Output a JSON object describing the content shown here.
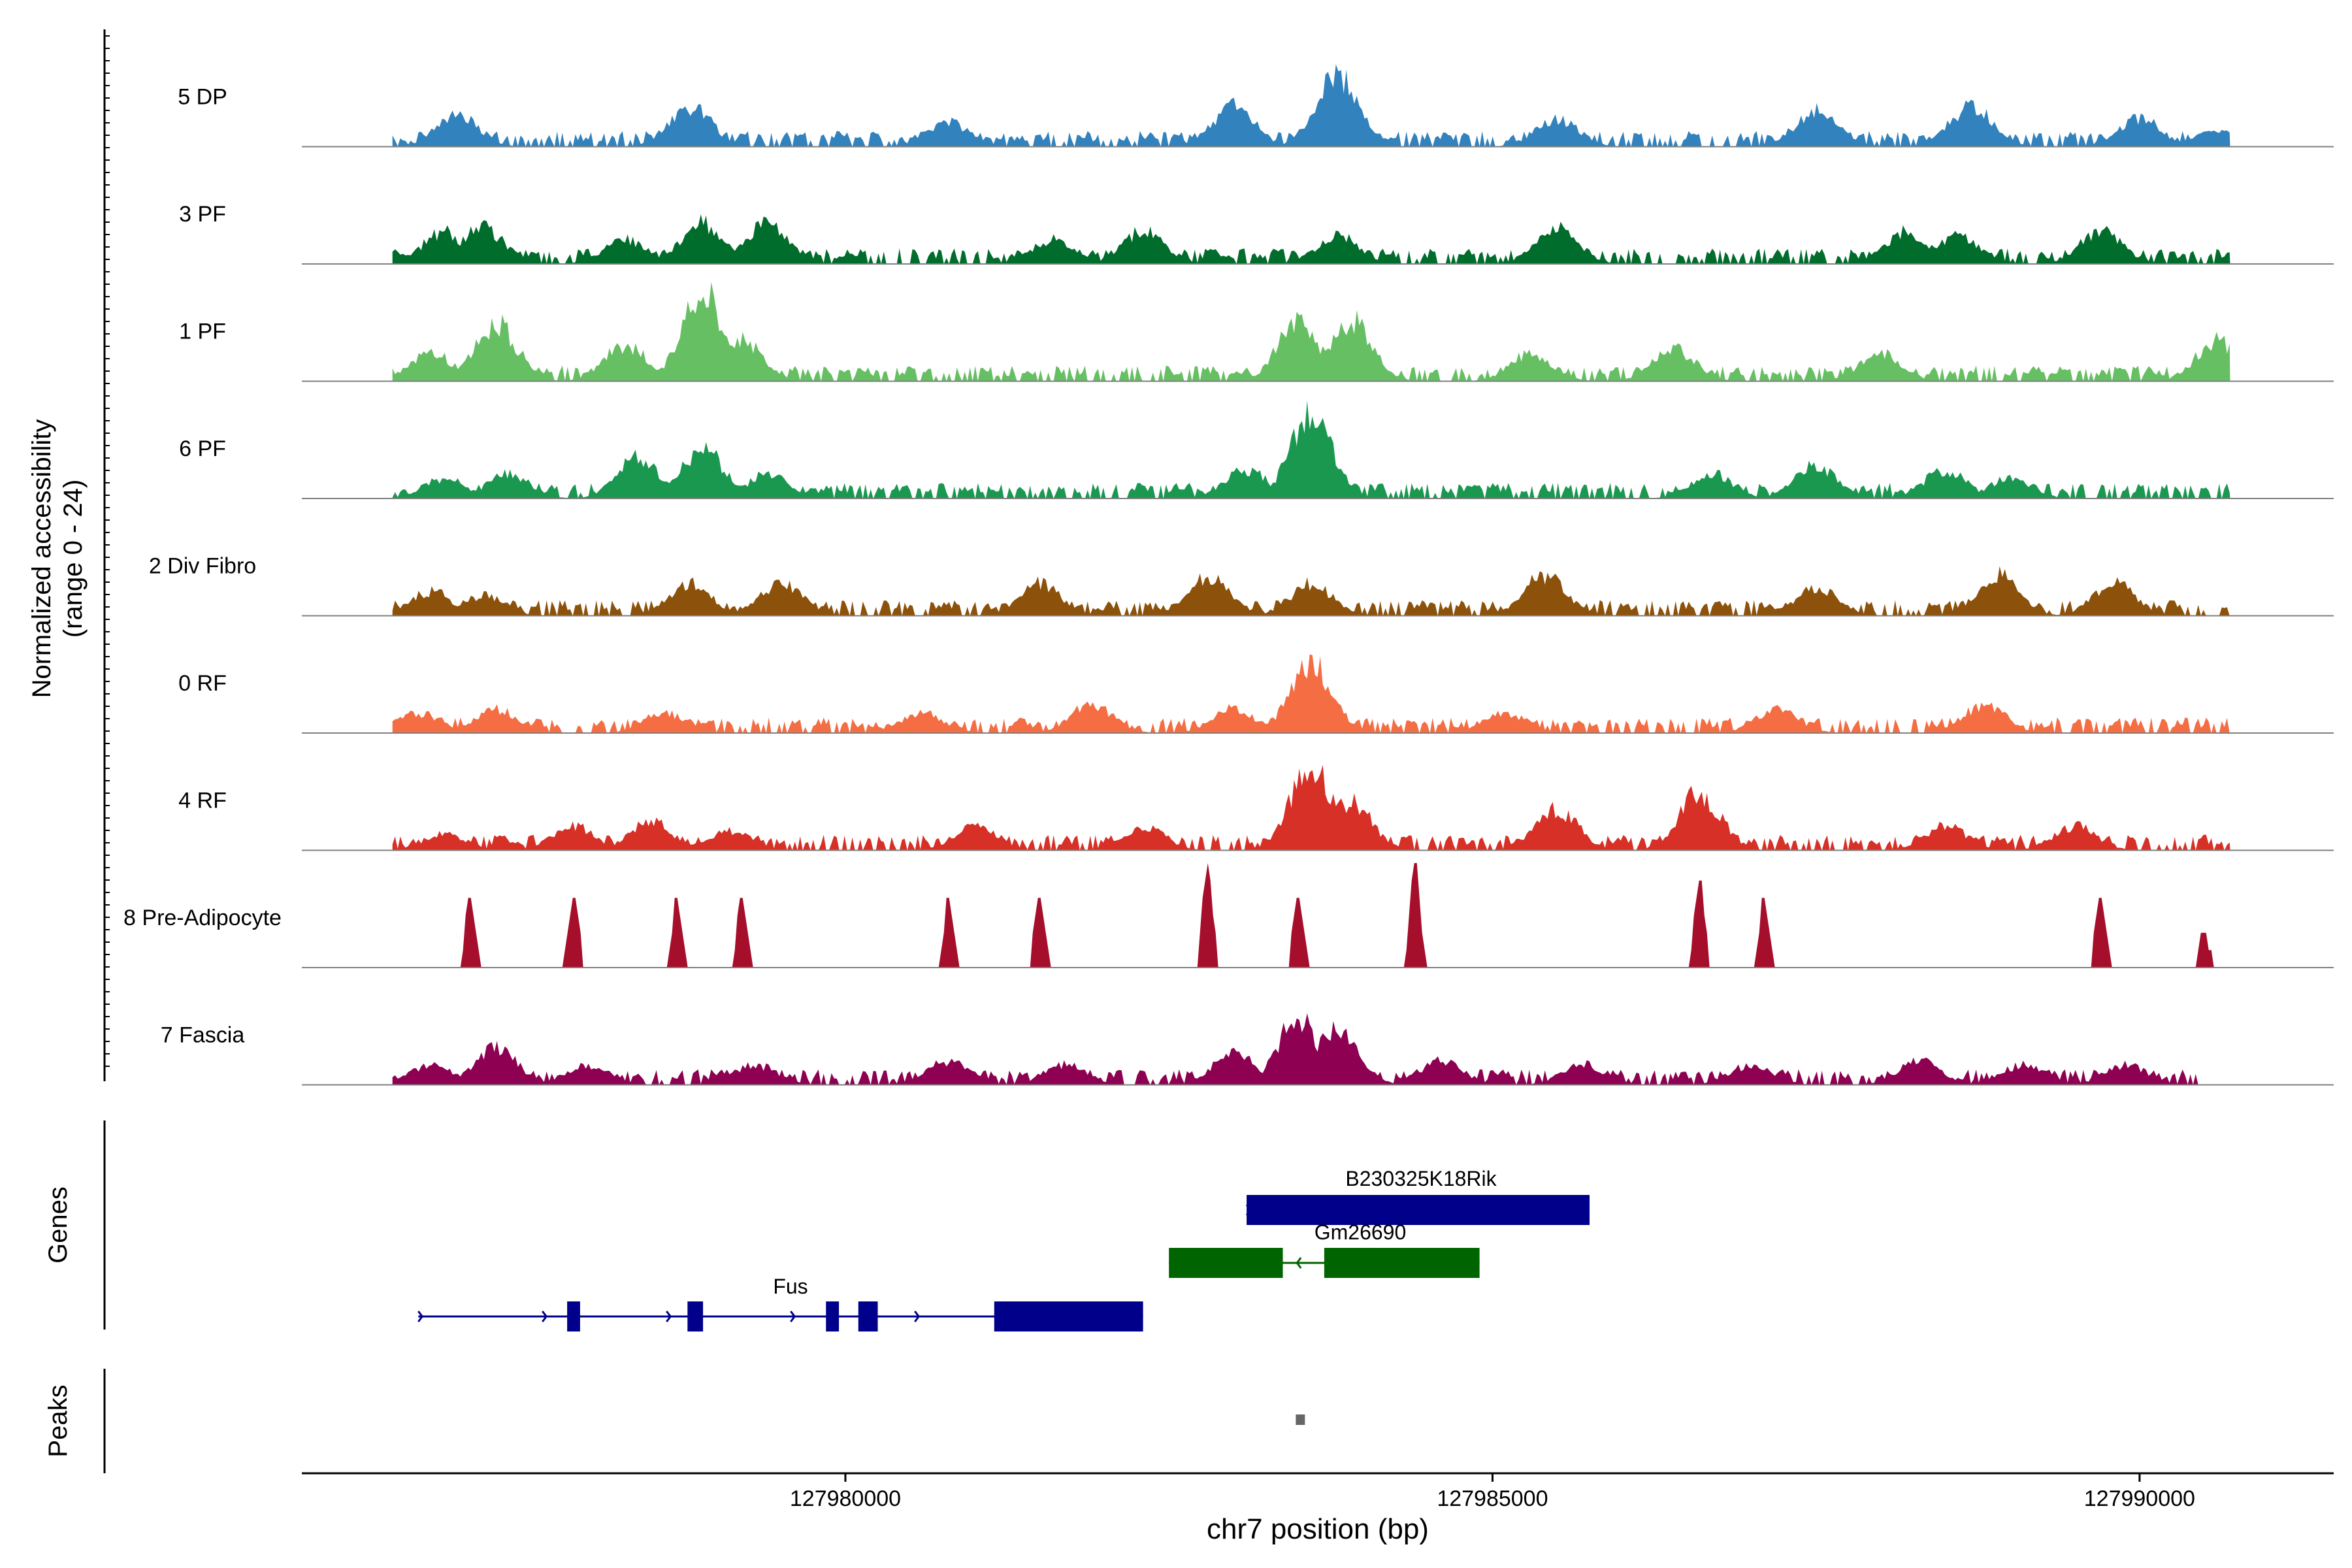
{
  "chart_data": {
    "type": "area",
    "title": "",
    "xlabel": "chr7 position (bp)",
    "ylabel_lines": [
      "Normalized accessibility",
      "(range 0 - 24)"
    ],
    "ylim": [
      0,
      24
    ],
    "xlim": [
      127975800,
      127991500
    ],
    "x_ticks": [
      127980000,
      127985000,
      127990000
    ],
    "x_tick_labels": [
      "127980000",
      "127985000",
      "127990000"
    ],
    "tracks": [
      {
        "name": "5 DP",
        "color": "#3182bd",
        "start": 127976500,
        "end": 127990700,
        "peaks": [
          [
            127977000,
            8
          ],
          [
            127978800,
            10
          ],
          [
            127980800,
            6
          ],
          [
            127983000,
            10
          ],
          [
            127983800,
            18
          ],
          [
            127985500,
            7
          ],
          [
            127987500,
            9
          ],
          [
            127988700,
            10
          ],
          [
            127990000,
            7
          ],
          [
            127990600,
            4
          ]
        ]
      },
      {
        "name": "3 PF",
        "color": "#006d2c",
        "start": 127976500,
        "end": 127990700,
        "peaks": [
          [
            127976900,
            8
          ],
          [
            127977200,
            9
          ],
          [
            127978300,
            6
          ],
          [
            127978900,
            10
          ],
          [
            127979400,
            10
          ],
          [
            127981600,
            6
          ],
          [
            127982300,
            8
          ],
          [
            127983800,
            7
          ],
          [
            127985500,
            9
          ],
          [
            127988200,
            8
          ],
          [
            127988600,
            7
          ],
          [
            127989700,
            8
          ]
        ]
      },
      {
        "name": "1 PF",
        "color": "#66bf63",
        "start": 127976500,
        "end": 127990700,
        "peaks": [
          [
            127976800,
            7
          ],
          [
            127977300,
            14
          ],
          [
            127978300,
            9
          ],
          [
            127978900,
            22
          ],
          [
            127979200,
            10
          ],
          [
            127983500,
            14
          ],
          [
            127983900,
            15
          ],
          [
            127985300,
            7
          ],
          [
            127986400,
            8
          ],
          [
            127988000,
            7
          ],
          [
            127990600,
            10
          ]
        ]
      },
      {
        "name": "6 PF",
        "color": "#1a9850",
        "start": 127976500,
        "end": 127990700,
        "peaks": [
          [
            127976900,
            5
          ],
          [
            127977400,
            6
          ],
          [
            127978400,
            10
          ],
          [
            127978900,
            12
          ],
          [
            127979400,
            6
          ],
          [
            127983100,
            7
          ],
          [
            127983600,
            20
          ],
          [
            127986700,
            6
          ],
          [
            127987500,
            8
          ],
          [
            127988500,
            7
          ],
          [
            127989000,
            5
          ]
        ]
      },
      {
        "name": "2 Div Fibro",
        "color": "#8c510a",
        "start": 127976500,
        "end": 127990700,
        "peaks": [
          [
            127976800,
            6
          ],
          [
            127977200,
            5
          ],
          [
            127978800,
            8
          ],
          [
            127979500,
            8
          ],
          [
            127981500,
            8
          ],
          [
            127982800,
            10
          ],
          [
            127983600,
            8
          ],
          [
            127985400,
            10
          ],
          [
            127987500,
            7
          ],
          [
            127988900,
            10
          ],
          [
            127989800,
            8
          ]
        ]
      },
      {
        "name": "0 RF",
        "color": "#f46d43",
        "start": 127976500,
        "end": 127990700,
        "peaks": [
          [
            127976700,
            5
          ],
          [
            127977300,
            6
          ],
          [
            127978600,
            5
          ],
          [
            127980600,
            5
          ],
          [
            127981900,
            7
          ],
          [
            127983000,
            6
          ],
          [
            127983600,
            17
          ],
          [
            127985100,
            5
          ],
          [
            127987200,
            6
          ],
          [
            127988800,
            7
          ]
        ]
      },
      {
        "name": "4 RF",
        "color": "#d73027",
        "start": 127976500,
        "end": 127990700,
        "peaks": [
          [
            127976900,
            4
          ],
          [
            127977900,
            6
          ],
          [
            127978500,
            7
          ],
          [
            127979100,
            5
          ],
          [
            127981000,
            6
          ],
          [
            127982300,
            6
          ],
          [
            127983600,
            20
          ],
          [
            127983900,
            12
          ],
          [
            127985500,
            10
          ],
          [
            127986600,
            14
          ],
          [
            127988500,
            6
          ],
          [
            127989500,
            6
          ]
        ]
      },
      {
        "name": "8 Pre-Adipocyte",
        "color": "#a50f2b",
        "start": 127976500,
        "end": 127990700,
        "peaks": [
          [
            127977100,
            16
          ],
          [
            127977900,
            16
          ],
          [
            127978700,
            16
          ],
          [
            127979200,
            16
          ],
          [
            127980800,
            16
          ],
          [
            127981500,
            16
          ],
          [
            127982800,
            24
          ],
          [
            127983500,
            16
          ],
          [
            127984400,
            24
          ],
          [
            127986600,
            20
          ],
          [
            127987100,
            16
          ],
          [
            127989700,
            16
          ],
          [
            127990500,
            8
          ]
        ]
      },
      {
        "name": "7 Fascia",
        "color": "#8e0152",
        "start": 127976500,
        "end": 127990500,
        "peaks": [
          [
            127976800,
            5
          ],
          [
            127977300,
            9
          ],
          [
            127978000,
            5
          ],
          [
            127979300,
            5
          ],
          [
            127980800,
            6
          ],
          [
            127981700,
            5
          ],
          [
            127983000,
            8
          ],
          [
            127983500,
            16
          ],
          [
            127983800,
            14
          ],
          [
            127984600,
            6
          ],
          [
            127985700,
            5
          ],
          [
            127987000,
            5
          ],
          [
            127988300,
            6
          ],
          [
            127989100,
            5
          ],
          [
            127989900,
            5
          ]
        ]
      }
    ],
    "genes": [
      {
        "name": "Fus",
        "color": "#00008b",
        "strand": "+",
        "start": 127976700,
        "end": 127982300,
        "exons": [
          [
            127977850,
            127977950
          ],
          [
            127978780,
            127978900
          ],
          [
            127979850,
            127979950
          ],
          [
            127980100,
            127980250
          ],
          [
            127981150,
            127982300
          ]
        ]
      },
      {
        "name": "B230325K18Rik",
        "color": "#00008b",
        "strand": "+",
        "start": 127983100,
        "end": 127985750,
        "exons": [
          [
            127983100,
            127985750
          ]
        ]
      },
      {
        "name": "Gm26690",
        "color": "#006400",
        "strand": "-",
        "start": 127982500,
        "end": 127984900,
        "exons": [
          [
            127982500,
            127983380
          ],
          [
            127983700,
            127984900
          ]
        ]
      }
    ],
    "peaks_track": [
      [
        127983480,
        127983540
      ]
    ],
    "panel_labels": {
      "genes": "Genes",
      "peaks": "Peaks"
    }
  }
}
